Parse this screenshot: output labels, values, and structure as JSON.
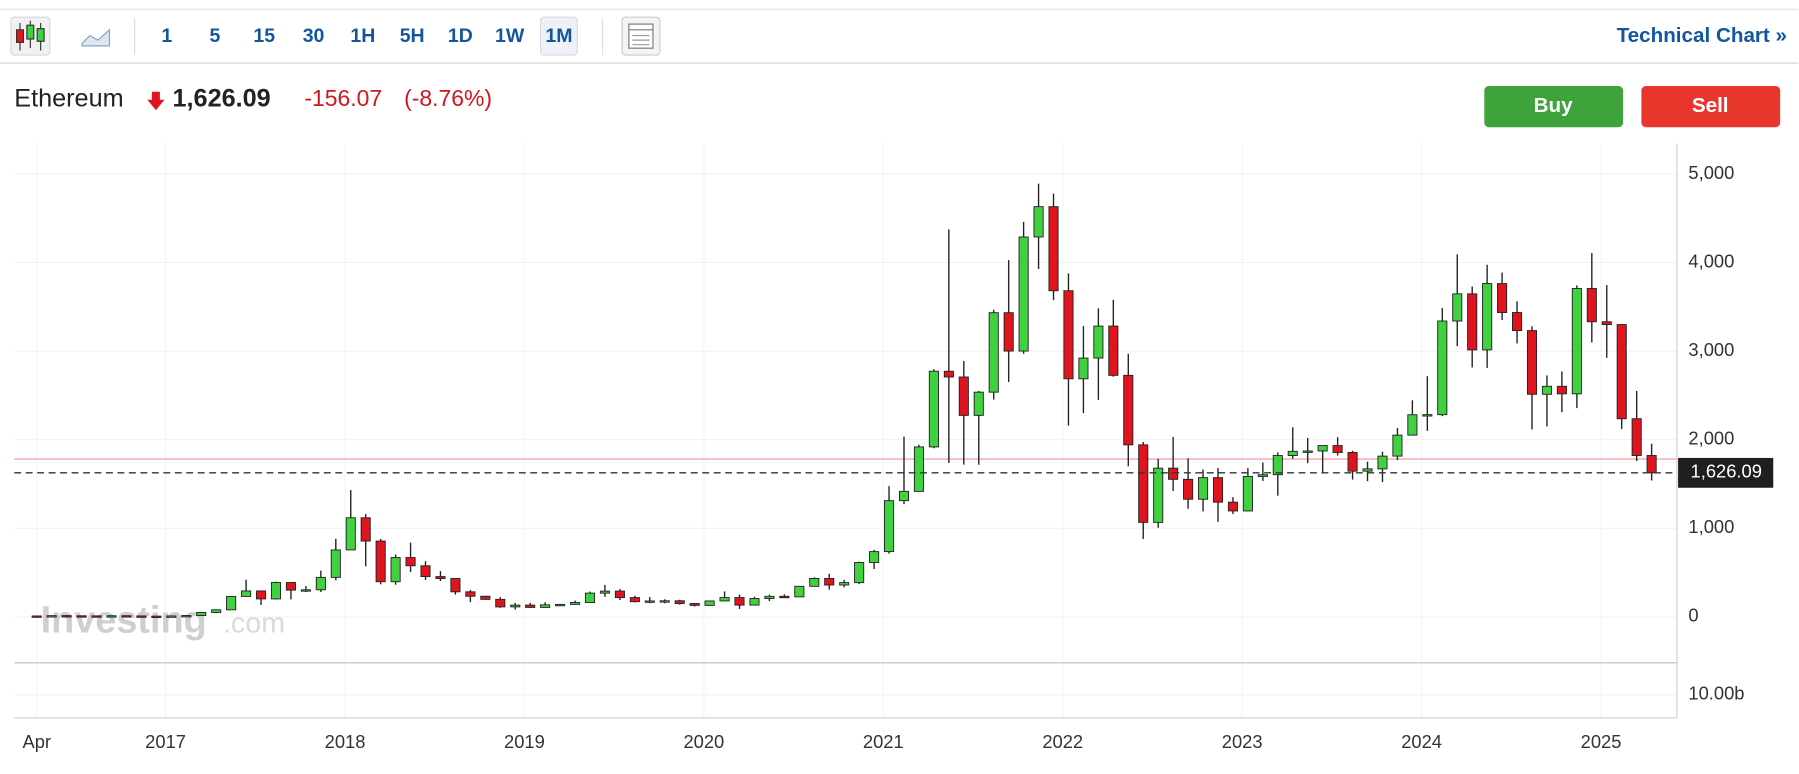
{
  "toolbar": {
    "intervals": [
      "1",
      "5",
      "15",
      "30",
      "1H",
      "5H",
      "1D",
      "1W",
      "1M"
    ],
    "active": 8,
    "link": "Technical Chart »"
  },
  "quote": {
    "name": "Ethereum",
    "price": "1,626.09",
    "change": "-156.07",
    "change_pct": "(-8.76%)"
  },
  "buttons": {
    "buy": "Buy",
    "sell": "Sell"
  },
  "watermark": {
    "brand": "Investing",
    "suffix": ".com"
  },
  "chart_data": {
    "type": "candlestick",
    "up_color": "#3fd13f",
    "down_color": "#e0141e",
    "grid": true,
    "categories": [
      "2016-04",
      "2016-05",
      "2016-06",
      "2016-07",
      "2016-08",
      "2016-09",
      "2016-10",
      "2016-11",
      "2016-12",
      "2017-01",
      "2017-02",
      "2017-03",
      "2017-04",
      "2017-05",
      "2017-06",
      "2017-07",
      "2017-08",
      "2017-09",
      "2017-10",
      "2017-11",
      "2017-12",
      "2018-01",
      "2018-02",
      "2018-03",
      "2018-04",
      "2018-05",
      "2018-06",
      "2018-07",
      "2018-08",
      "2018-09",
      "2018-10",
      "2018-11",
      "2018-12",
      "2019-01",
      "2019-02",
      "2019-03",
      "2019-04",
      "2019-05",
      "2019-06",
      "2019-07",
      "2019-08",
      "2019-09",
      "2019-10",
      "2019-11",
      "2019-12",
      "2020-01",
      "2020-02",
      "2020-03",
      "2020-04",
      "2020-05",
      "2020-06",
      "2020-07",
      "2020-08",
      "2020-09",
      "2020-10",
      "2020-11",
      "2020-12",
      "2021-01",
      "2021-02",
      "2021-03",
      "2021-04",
      "2021-05",
      "2021-06",
      "2021-07",
      "2021-08",
      "2021-09",
      "2021-10",
      "2021-11",
      "2021-12",
      "2022-01",
      "2022-02",
      "2022-03",
      "2022-04",
      "2022-05",
      "2022-06",
      "2022-07",
      "2022-08",
      "2022-09",
      "2022-10",
      "2022-11",
      "2022-12",
      "2023-01",
      "2023-02",
      "2023-03",
      "2023-04",
      "2023-05",
      "2023-06",
      "2023-07",
      "2023-08",
      "2023-09",
      "2023-10",
      "2023-11",
      "2023-12",
      "2024-01",
      "2024-02",
      "2024-03",
      "2024-04",
      "2024-05",
      "2024-06",
      "2024-07",
      "2024-08",
      "2024-09",
      "2024-10",
      "2024-11",
      "2024-12",
      "2025-01",
      "2025-02",
      "2025-03",
      "2025-04"
    ],
    "open": [
      10.5,
      8.8,
      14,
      12.4,
      11.7,
      11.4,
      13.2,
      10.9,
      8.6,
      8.2,
      10.7,
      15.6,
      50,
      80,
      231,
      293,
      203,
      388,
      302,
      306,
      446,
      756,
      1119,
      856,
      397,
      670,
      577,
      455,
      433,
      283,
      233,
      198,
      113,
      133,
      107,
      136,
      141,
      162,
      268,
      291,
      218,
      172,
      180,
      182,
      151,
      130,
      180,
      218,
      133,
      207,
      232,
      226,
      345,
      434,
      360,
      387,
      614,
      737,
      1312,
      1417,
      1919,
      2773,
      2708,
      2275,
      2537,
      3434,
      3001,
      4289,
      4631,
      3682,
      2688,
      2922,
      3283,
      2727,
      1942,
      1067,
      1679,
      1553,
      1328,
      1572,
      1295,
      1196,
      1585,
      1605,
      1822,
      1869,
      1873,
      1934,
      1856,
      1645,
      1671,
      1815,
      2052,
      2282,
      2283,
      3340,
      3647,
      3014,
      3763,
      3436,
      3232,
      2513,
      2603,
      2518,
      3707,
      3332,
      3300,
      2237,
      1822
    ],
    "high": [
      12,
      14.4,
      21,
      14.7,
      12,
      14,
      13.5,
      11.2,
      8.9,
      11.5,
      16.3,
      54,
      82,
      232,
      420,
      298,
      398,
      392,
      348,
      522,
      882,
      1432,
      1161,
      880,
      705,
      838,
      628,
      517,
      434,
      303,
      234,
      223,
      158,
      159,
      165,
      147,
      184,
      286,
      361,
      315,
      239,
      225,
      199,
      194,
      154,
      185,
      287,
      253,
      227,
      250,
      255,
      349,
      446,
      488,
      418,
      623,
      757,
      1476,
      2036,
      1943,
      2797,
      4375,
      2889,
      2551,
      3467,
      4028,
      4460,
      4891,
      4778,
      3878,
      3285,
      3483,
      3580,
      2970,
      1974,
      1784,
      2030,
      1790,
      1663,
      1680,
      1352,
      1679,
      1743,
      1858,
      2141,
      2020,
      1931,
      2029,
      1875,
      1753,
      1865,
      2133,
      2445,
      2717,
      3486,
      4093,
      3730,
      3975,
      3887,
      3563,
      3281,
      2726,
      2770,
      3742,
      4107,
      3745,
      3307,
      2550,
      1955
    ],
    "low": [
      7,
      8.6,
      11,
      10.5,
      10,
      11,
      10.7,
      8.3,
      6.6,
      8,
      10.4,
      15.4,
      43,
      78,
      230,
      135,
      196,
      198,
      281,
      282,
      414,
      756,
      571,
      367,
      363,
      508,
      416,
      405,
      251,
      167,
      193,
      102,
      82,
      101,
      103,
      129,
      140,
      159,
      226,
      191,
      164,
      154,
      153,
      138,
      117,
      126,
      178,
      90,
      130,
      178,
      216,
      224,
      344,
      308,
      334,
      370,
      540,
      714,
      1274,
      1433,
      1904,
      1737,
      1719,
      1718,
      2453,
      2651,
      2970,
      3928,
      3575,
      2159,
      2300,
      2450,
      2711,
      1700,
      880,
      1006,
      1422,
      1221,
      1191,
      1073,
      1162,
      1192,
      1535,
      1368,
      1786,
      1736,
      1626,
      1822,
      1550,
      1532,
      1522,
      1770,
      2051,
      2100,
      2266,
      3056,
      2816,
      2811,
      3352,
      3087,
      2116,
      2150,
      2310,
      2357,
      3098,
      2925,
      2120,
      1760,
      1540
    ],
    "close": [
      8.8,
      14,
      12.4,
      11.7,
      11.4,
      13.2,
      10.9,
      8.6,
      8.2,
      10.7,
      15.6,
      50,
      80,
      231,
      293,
      203,
      388,
      302,
      306,
      446,
      756,
      1119,
      856,
      397,
      670,
      577,
      455,
      433,
      283,
      233,
      198,
      113,
      133,
      107,
      136,
      141,
      162,
      268,
      291,
      218,
      172,
      180,
      182,
      151,
      130,
      180,
      218,
      133,
      207,
      232,
      226,
      345,
      434,
      360,
      387,
      614,
      737,
      1312,
      1417,
      1919,
      2773,
      2708,
      2275,
      2537,
      3434,
      3001,
      4289,
      4631,
      3682,
      2688,
      2922,
      3283,
      2727,
      1942,
      1067,
      1679,
      1553,
      1328,
      1572,
      1295,
      1196,
      1585,
      1605,
      1822,
      1869,
      1873,
      1934,
      1856,
      1645,
      1671,
      1815,
      2052,
      2282,
      2283,
      3340,
      3647,
      3014,
      3763,
      3436,
      3232,
      2513,
      2603,
      2518,
      3707,
      3332,
      3300,
      2237,
      1822,
      1626.09
    ],
    "ylim": [
      -518,
      5346
    ],
    "yticks": [
      0,
      {
        "value": 1000,
        "label": "1,000"
      },
      {
        "value": 2000,
        "label": "2,000"
      },
      {
        "value": 3000,
        "label": "3,000"
      },
      {
        "value": 4000,
        "label": "4,000"
      },
      {
        "value": 5000,
        "label": "5,000"
      }
    ],
    "xticks": [
      {
        "value": "2016-04",
        "label": "Apr"
      },
      {
        "value": "2017-01",
        "label": "2017"
      },
      {
        "value": "2018-01",
        "label": "2018"
      },
      {
        "value": "2019-01",
        "label": "2019"
      },
      {
        "value": "2020-01",
        "label": "2020"
      },
      {
        "value": "2021-01",
        "label": "2021"
      },
      {
        "value": "2022-01",
        "label": "2022"
      },
      {
        "value": "2023-01",
        "label": "2023"
      },
      {
        "value": "2024-01",
        "label": "2024"
      },
      {
        "value": "2025-01",
        "label": "2025"
      }
    ],
    "last_price": {
      "value": 1626.09,
      "label": "1,626.09"
    },
    "prev_close": 1782.16,
    "prev_close_color": "#f4a6a6",
    "volume_ylim": [
      0,
      24000000000
    ],
    "volume_yticks": [
      {
        "value": 10000000000,
        "label": "10.00b"
      }
    ]
  }
}
